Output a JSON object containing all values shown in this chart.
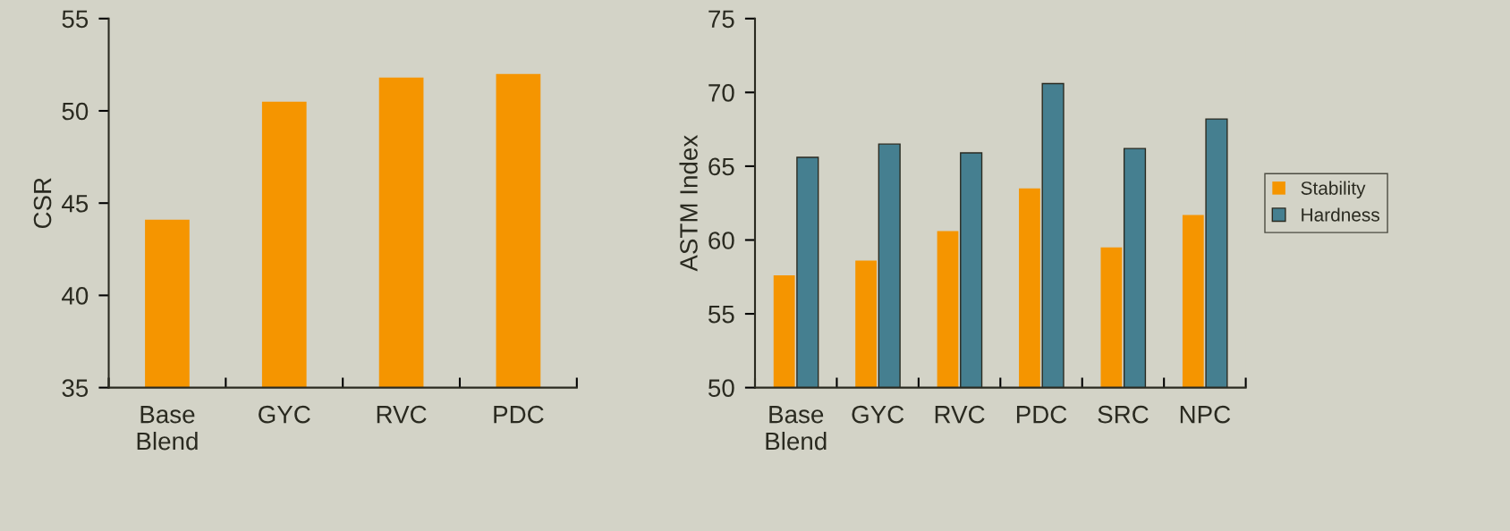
{
  "chart_data": [
    {
      "type": "bar",
      "ylabel": "CSR",
      "categories": [
        "Base\nBlend",
        "GYC",
        "RVC",
        "PDC"
      ],
      "ylim": [
        35,
        55
      ],
      "yticks": [
        35,
        40,
        45,
        50,
        55
      ],
      "series": [
        {
          "color": "#f59500",
          "values": [
            44.1,
            50.5,
            51.8,
            52.0
          ]
        }
      ]
    },
    {
      "type": "bar",
      "ylabel": "ASTM Index",
      "categories": [
        "Base\nBlend",
        "GYC",
        "RVC",
        "PDC",
        "SRC",
        "NPC"
      ],
      "ylim": [
        50,
        75
      ],
      "yticks": [
        50,
        55,
        60,
        65,
        70,
        75
      ],
      "legend": "right",
      "series": [
        {
          "name": "Stability",
          "color": "#f59500",
          "values": [
            57.6,
            58.6,
            60.6,
            63.5,
            59.5,
            61.7
          ]
        },
        {
          "name": "Hardness",
          "color": "#457f90",
          "values": [
            65.6,
            66.5,
            65.9,
            70.6,
            66.2,
            68.2
          ]
        }
      ]
    }
  ]
}
